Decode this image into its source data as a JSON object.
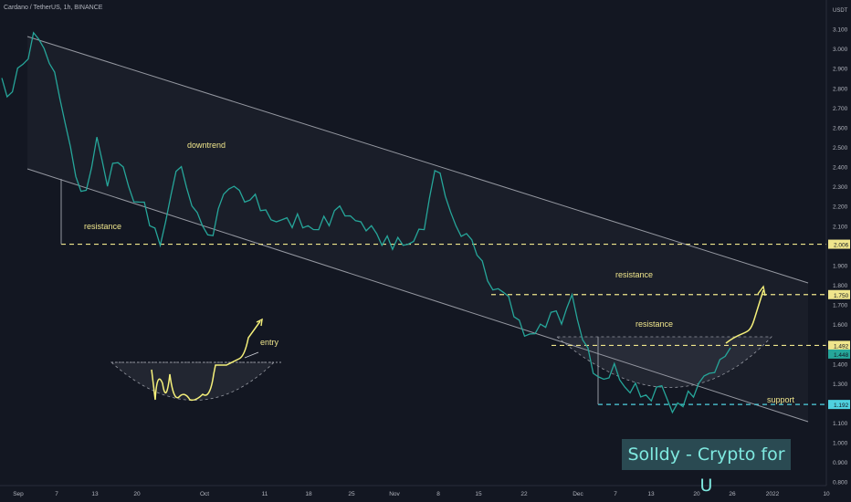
{
  "header": {
    "symbol_line": "Cardano / TetherUS, 1h, BINANCE",
    "currency": "USDT"
  },
  "brand": {
    "text": "Solldy - Crypto for U"
  },
  "colors": {
    "background": "#131722",
    "price_line": "#26a69a",
    "channel": "#9598a1",
    "dashed_level": "#f0e68c",
    "support_line": "#4fd1e0",
    "curve": "#f5f07a",
    "axis_text": "#b2b5be"
  },
  "labels": {
    "downtrend": "downtrend",
    "resistance_left": "resistance",
    "resistance_top": "resistance",
    "resistance_mid": "resistance",
    "support": "support",
    "entry": "entry"
  },
  "chart_data": {
    "type": "line",
    "title": "Cardano / TetherUS, 1h, BINANCE",
    "ylabel": "USDT",
    "ylim": [
      0.78,
      3.2
    ],
    "y_ticks": [
      "3.100",
      "3.000",
      "2.900",
      "2.800",
      "2.700",
      "2.600",
      "2.500",
      "2.400",
      "2.300",
      "2.200",
      "2.100",
      "2.006",
      "1.900",
      "1.800",
      "1.750",
      "1.700",
      "1.600",
      "1.500",
      "1.492",
      "1.400",
      "1.300",
      "1.200",
      "1.192",
      "1.100",
      "1.000",
      "0.900",
      "0.800"
    ],
    "x_ticks": [
      "Sep",
      "7",
      "13",
      "20",
      "Oct",
      "11",
      "18",
      "25",
      "Nov",
      "8",
      "15",
      "22",
      "Dec",
      "7",
      "13",
      "20",
      "26",
      "2022",
      "10"
    ],
    "series": [
      {
        "values": [
          2.85,
          2.78,
          2.92,
          3.08,
          3.0,
          2.88,
          2.62,
          2.35,
          2.28,
          2.55,
          2.3,
          2.42,
          2.3,
          2.22,
          2.1,
          2.0,
          2.25,
          2.4,
          2.2,
          2.1,
          2.05,
          2.26,
          2.3,
          2.22,
          2.26,
          2.18,
          2.12,
          2.14,
          2.16,
          2.1,
          2.08,
          2.1,
          2.2,
          2.15,
          2.12,
          2.1,
          2.0,
          1.98,
          2.0,
          2.02,
          2.08,
          2.38,
          2.25,
          2.1,
          2.06,
          1.95,
          1.82,
          1.78,
          1.74,
          1.62,
          1.55,
          1.6,
          1.66,
          1.6,
          1.75,
          1.52,
          1.35,
          1.32,
          1.4,
          1.28,
          1.3,
          1.24,
          1.28,
          1.22,
          1.2,
          1.26,
          1.3,
          1.35,
          1.42,
          1.48
        ]
      }
    ],
    "levels": [
      {
        "label": "resistance",
        "value": 2.006
      },
      {
        "label": "resistance",
        "value": 1.75
      },
      {
        "label": "resistance",
        "value": 1.492
      },
      {
        "label": "support",
        "value": 1.192
      }
    ],
    "current_price": "1.448",
    "grid": false
  }
}
